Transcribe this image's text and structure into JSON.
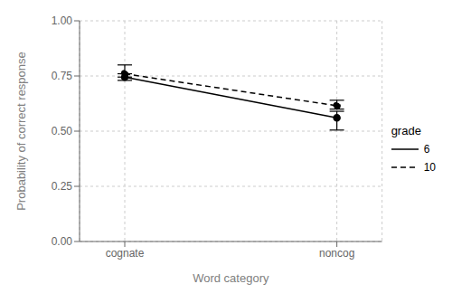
{
  "chart_data": {
    "type": "line",
    "categories": [
      "cognate",
      "noncog"
    ],
    "series": [
      {
        "name": "6",
        "color": "#000000",
        "line_style": "solid",
        "marker": "circle",
        "values": [
          0.745,
          0.56
        ],
        "error_lower": [
          0.015,
          0.055
        ],
        "error_upper": [
          0.015,
          0.03
        ]
      },
      {
        "name": "10",
        "color": "#000000",
        "line_style": "dashed",
        "marker": "circle",
        "values": [
          0.76,
          0.615
        ],
        "error_lower": [
          0.015,
          0.015
        ],
        "error_upper": [
          0.04,
          0.025
        ]
      }
    ],
    "xlabel": "Word category",
    "ylabel": "Probability of correct response",
    "legend_title": "grade",
    "legend": "right",
    "ylim": [
      0.0,
      1.0
    ],
    "yticks": [
      {
        "value": 0.0,
        "label": "0.00"
      },
      {
        "value": 0.25,
        "label": "0.25"
      },
      {
        "value": 0.5,
        "label": "0.50"
      },
      {
        "value": 0.75,
        "label": "0.75"
      },
      {
        "value": 1.0,
        "label": "1.00"
      }
    ],
    "grid": true
  }
}
